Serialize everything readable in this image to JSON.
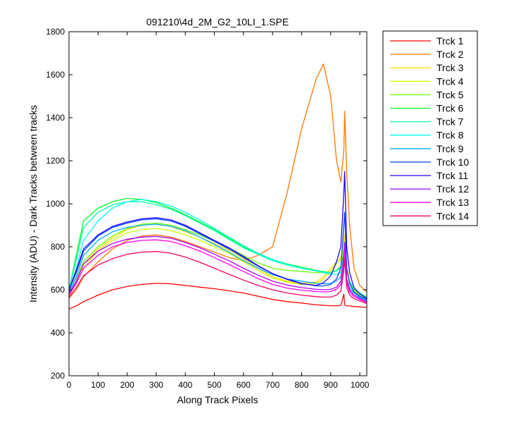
{
  "chart_data": {
    "type": "line",
    "title": "091210\\4d_2M_G2_10LI_1.SPE",
    "xlabel": "Along Track Pixels",
    "ylabel": "Intensity (ADU) - Dark Tracks between tracks",
    "xlim": [
      0,
      1024
    ],
    "ylim": [
      200,
      1800
    ],
    "xticks": [
      0,
      100,
      200,
      300,
      400,
      500,
      600,
      700,
      800,
      900,
      1000
    ],
    "yticks": [
      200,
      400,
      600,
      800,
      1000,
      1200,
      1400,
      1600,
      1800
    ],
    "grid": false,
    "legend_position": "outside-right",
    "x": [
      0,
      25,
      50,
      100,
      150,
      200,
      250,
      300,
      350,
      400,
      450,
      500,
      550,
      600,
      650,
      700,
      750,
      800,
      850,
      875,
      900,
      920,
      935,
      945,
      948,
      955,
      965,
      980,
      1000,
      1024
    ],
    "series": [
      {
        "name": "Trck 1",
        "color": "#ff0000",
        "values": [
          510,
          525,
          545,
          575,
          600,
          615,
          625,
          630,
          628,
          620,
          612,
          605,
          595,
          585,
          570,
          555,
          545,
          538,
          530,
          528,
          526,
          525,
          528,
          580,
          530,
          525,
          525,
          522,
          520,
          518
        ]
      },
      {
        "name": "Trck 2",
        "color": "#ff7700",
        "values": [
          560,
          600,
          660,
          730,
          790,
          830,
          850,
          855,
          845,
          825,
          800,
          775,
          750,
          735,
          760,
          800,
          1050,
          1350,
          1580,
          1650,
          1500,
          1200,
          1100,
          1250,
          1430,
          1150,
          900,
          700,
          620,
          590
        ]
      },
      {
        "name": "Trck 3",
        "color": "#ffdd00",
        "values": [
          580,
          640,
          720,
          790,
          840,
          880,
          900,
          905,
          895,
          870,
          845,
          815,
          785,
          745,
          700,
          660,
          640,
          630,
          635,
          660,
          700,
          730,
          750,
          830,
          860,
          700,
          640,
          600,
          580,
          560
        ]
      },
      {
        "name": "Trck 4",
        "color": "#ccff00",
        "values": [
          570,
          630,
          705,
          780,
          830,
          865,
          880,
          885,
          875,
          855,
          830,
          800,
          770,
          730,
          690,
          655,
          635,
          625,
          628,
          650,
          690,
          720,
          740,
          800,
          830,
          690,
          635,
          595,
          575,
          555
        ]
      },
      {
        "name": "Trck 5",
        "color": "#66ff00",
        "values": [
          585,
          655,
          730,
          800,
          850,
          885,
          905,
          910,
          900,
          880,
          855,
          825,
          795,
          760,
          725,
          700,
          690,
          685,
          680,
          680,
          680,
          690,
          710,
          780,
          800,
          690,
          640,
          600,
          580,
          560
        ]
      },
      {
        "name": "Trck 6",
        "color": "#00ff22",
        "values": [
          600,
          760,
          920,
          980,
          1010,
          1025,
          1020,
          1005,
          980,
          950,
          915,
          880,
          840,
          800,
          770,
          740,
          720,
          705,
          690,
          685,
          680,
          690,
          705,
          760,
          790,
          690,
          640,
          605,
          585,
          565
        ]
      },
      {
        "name": "Trck 7",
        "color": "#00ffaa",
        "values": [
          605,
          740,
          890,
          960,
          995,
          1010,
          1010,
          995,
          975,
          945,
          910,
          875,
          835,
          795,
          765,
          735,
          715,
          700,
          688,
          683,
          680,
          688,
          702,
          755,
          785,
          688,
          640,
          605,
          585,
          565
        ]
      },
      {
        "name": "Trck 8",
        "color": "#00ffee",
        "values": [
          600,
          700,
          830,
          920,
          980,
          1010,
          1020,
          1010,
          990,
          960,
          925,
          885,
          845,
          805,
          770,
          740,
          718,
          700,
          688,
          680,
          672,
          672,
          680,
          720,
          760,
          650,
          610,
          585,
          570,
          550
        ]
      },
      {
        "name": "Trck 9",
        "color": "#00aaff",
        "values": [
          590,
          660,
          760,
          830,
          870,
          890,
          900,
          905,
          895,
          875,
          845,
          810,
          775,
          735,
          700,
          670,
          650,
          640,
          630,
          628,
          630,
          640,
          660,
          730,
          800,
          650,
          610,
          585,
          565,
          550
        ]
      },
      {
        "name": "Trck 10",
        "color": "#0044ff",
        "values": [
          600,
          680,
          780,
          850,
          890,
          910,
          925,
          930,
          920,
          895,
          860,
          825,
          790,
          750,
          710,
          675,
          650,
          630,
          618,
          618,
          625,
          650,
          700,
          900,
          960,
          700,
          630,
          590,
          570,
          555
        ]
      },
      {
        "name": "Trck 11",
        "color": "#2200ff",
        "values": [
          600,
          690,
          790,
          855,
          895,
          915,
          930,
          935,
          925,
          900,
          865,
          830,
          795,
          755,
          712,
          675,
          648,
          628,
          620,
          632,
          665,
          730,
          800,
          1050,
          1150,
          800,
          680,
          610,
          580,
          560
        ]
      },
      {
        "name": "Trck 12",
        "color": "#aa00ff",
        "values": [
          580,
          640,
          720,
          780,
          815,
          835,
          845,
          848,
          840,
          820,
          795,
          765,
          735,
          700,
          668,
          640,
          622,
          610,
          602,
          600,
          602,
          612,
          640,
          760,
          820,
          650,
          600,
          575,
          560,
          545
        ]
      },
      {
        "name": "Trck 13",
        "color": "#ff00ee",
        "values": [
          575,
          630,
          700,
          760,
          800,
          820,
          830,
          832,
          825,
          805,
          780,
          750,
          718,
          685,
          652,
          625,
          608,
          598,
          592,
          590,
          592,
          602,
          625,
          720,
          780,
          630,
          590,
          568,
          555,
          540
        ]
      },
      {
        "name": "Trck 14",
        "color": "#ff0066",
        "values": [
          565,
          610,
          665,
          715,
          745,
          765,
          775,
          778,
          770,
          752,
          728,
          700,
          672,
          645,
          620,
          600,
          585,
          575,
          568,
          566,
          566,
          575,
          595,
          690,
          740,
          610,
          575,
          558,
          548,
          535
        ]
      }
    ]
  }
}
